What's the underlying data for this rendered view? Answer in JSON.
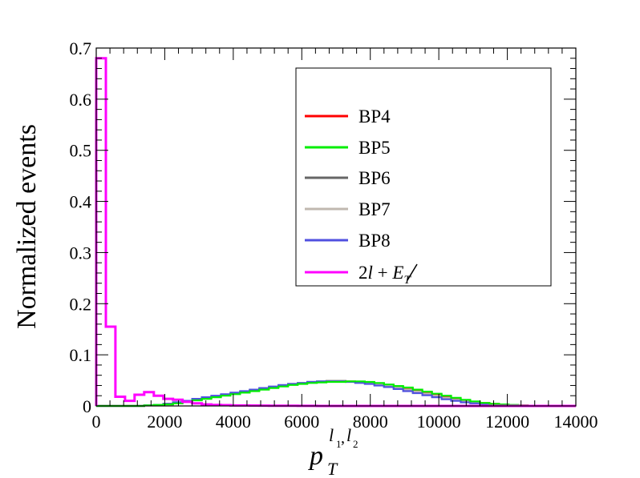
{
  "chart_data": {
    "type": "line",
    "ylabel": "Normalized events",
    "xlabel_main": "p",
    "xlabel_sub": "T",
    "xlabel_sup": "l",
    "xlabel_sup_sub1": "1",
    "xlabel_sup_sep": ",",
    "xlabel_sup_l2": "l",
    "xlabel_sup_sub2": "2",
    "xlim": [
      0,
      14000
    ],
    "ylim": [
      0,
      0.7
    ],
    "x_ticks": [
      0,
      2000,
      4000,
      6000,
      8000,
      10000,
      12000,
      14000
    ],
    "x_tick_labels": [
      "0",
      "2000",
      "4000",
      "6000",
      "8000",
      "10000",
      "12000",
      "14000"
    ],
    "y_ticks": [
      0,
      0.1,
      0.2,
      0.3,
      0.4,
      0.5,
      0.6,
      0.7
    ],
    "y_tick_labels": [
      "0",
      "0.1",
      "0.2",
      "0.3",
      "0.4",
      "0.5",
      "0.6",
      "0.7"
    ],
    "legend_position": "top-right",
    "bin_width": 280,
    "bin_edges_start": 0,
    "series": [
      {
        "name": "BP4",
        "color": "#ff0000",
        "values": [
          0,
          0,
          0,
          0,
          0,
          0.001,
          0.002,
          0.004,
          0.006,
          0.009,
          0.012,
          0.015,
          0.018,
          0.021,
          0.024,
          0.027,
          0.03,
          0.033,
          0.036,
          0.039,
          0.042,
          0.044,
          0.046,
          0.047,
          0.048,
          0.048,
          0.048,
          0.047,
          0.045,
          0.043,
          0.04,
          0.037,
          0.034,
          0.03,
          0.026,
          0.022,
          0.018,
          0.014,
          0.011,
          0.008,
          0.006,
          0.004,
          0.002,
          0.001,
          0.001,
          0,
          0,
          0,
          0,
          0
        ]
      },
      {
        "name": "BP5",
        "color": "#00ee00",
        "values": [
          0,
          0,
          0,
          0,
          0,
          0.001,
          0.002,
          0.003,
          0.005,
          0.008,
          0.011,
          0.014,
          0.017,
          0.02,
          0.023,
          0.026,
          0.029,
          0.032,
          0.035,
          0.038,
          0.041,
          0.043,
          0.045,
          0.046,
          0.047,
          0.047,
          0.048,
          0.048,
          0.047,
          0.045,
          0.042,
          0.039,
          0.036,
          0.032,
          0.028,
          0.024,
          0.02,
          0.016,
          0.012,
          0.009,
          0.006,
          0.004,
          0.003,
          0.002,
          0.001,
          0.0005,
          0,
          0,
          0,
          0
        ]
      },
      {
        "name": "BP6",
        "color": "#666666",
        "values": [
          0,
          0,
          0,
          0,
          0,
          0.001,
          0.002,
          0.004,
          0.007,
          0.01,
          0.013,
          0.016,
          0.019,
          0.022,
          0.025,
          0.028,
          0.031,
          0.034,
          0.037,
          0.04,
          0.043,
          0.045,
          0.047,
          0.048,
          0.049,
          0.049,
          0.048,
          0.046,
          0.044,
          0.041,
          0.038,
          0.035,
          0.031,
          0.027,
          0.023,
          0.019,
          0.015,
          0.012,
          0.009,
          0.006,
          0.004,
          0.002,
          0.001,
          0.0005,
          0,
          0,
          0,
          0,
          0,
          0
        ]
      },
      {
        "name": "BP7",
        "color": "#c0b8b0",
        "values": [
          0,
          0,
          0,
          0,
          0,
          0.001,
          0.002,
          0.004,
          0.007,
          0.01,
          0.013,
          0.016,
          0.019,
          0.022,
          0.025,
          0.028,
          0.031,
          0.034,
          0.037,
          0.04,
          0.042,
          0.044,
          0.046,
          0.047,
          0.048,
          0.048,
          0.048,
          0.047,
          0.045,
          0.042,
          0.039,
          0.036,
          0.032,
          0.028,
          0.024,
          0.02,
          0.016,
          0.012,
          0.009,
          0.006,
          0.004,
          0.003,
          0.002,
          0.001,
          0,
          0,
          0,
          0,
          0,
          0
        ]
      },
      {
        "name": "BP8",
        "color": "#5050e0",
        "values": [
          0,
          0,
          0,
          0,
          0,
          0.001,
          0.002,
          0.004,
          0.007,
          0.01,
          0.014,
          0.017,
          0.02,
          0.023,
          0.026,
          0.029,
          0.032,
          0.035,
          0.038,
          0.041,
          0.043,
          0.045,
          0.047,
          0.048,
          0.048,
          0.048,
          0.047,
          0.045,
          0.043,
          0.04,
          0.037,
          0.033,
          0.029,
          0.025,
          0.021,
          0.017,
          0.013,
          0.01,
          0.007,
          0.005,
          0.003,
          0.002,
          0.001,
          0,
          0,
          0,
          0,
          0,
          0,
          0
        ]
      },
      {
        "name_main": "2",
        "name_l": "l",
        "name_plus": " + ",
        "name_e": "E",
        "name_sub": "T",
        "color": "#ff00ff",
        "values": [
          0.68,
          0.155,
          0.018,
          0.01,
          0.022,
          0.027,
          0.02,
          0.014,
          0.012,
          0.008,
          0.005,
          0.003,
          0.002,
          0.0015,
          0.001,
          0.001,
          0.0008,
          0.0006,
          0.0005,
          0.0004,
          0.0003,
          0.0002,
          0.0001,
          0,
          0,
          0,
          0,
          0,
          0,
          0,
          0,
          0,
          0,
          0,
          0,
          0,
          0,
          0,
          0,
          0,
          0,
          0,
          0,
          0,
          0,
          0,
          0,
          0,
          0,
          0
        ]
      }
    ]
  }
}
